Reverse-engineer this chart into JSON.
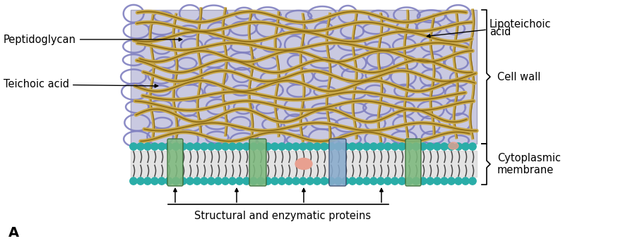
{
  "bg_color": "#ffffff",
  "cell_wall_color": "#b8b8d8",
  "peptidoglycan_color": "#c8a84b",
  "peptidoglycan_outline": "#8B6914",
  "membrane_teal": "#2aada8",
  "protein_green": "#7db87d",
  "protein_blue": "#88aacc",
  "protein_pink": "#e8a090",
  "loop_color": "#8080c0",
  "title": "A",
  "label_peptidoglycan": "Peptidoglycan",
  "label_teichoic": "Teichoic acid",
  "label_lipoteichoic": "Lipoteichoic\nacid",
  "label_cell_wall": "Cell wall",
  "label_cytoplasmic": "Cytoplasmic\nmembrane",
  "label_structural": "Structural and enzymatic proteins",
  "fig_width": 8.82,
  "fig_height": 3.52,
  "dpi": 100
}
